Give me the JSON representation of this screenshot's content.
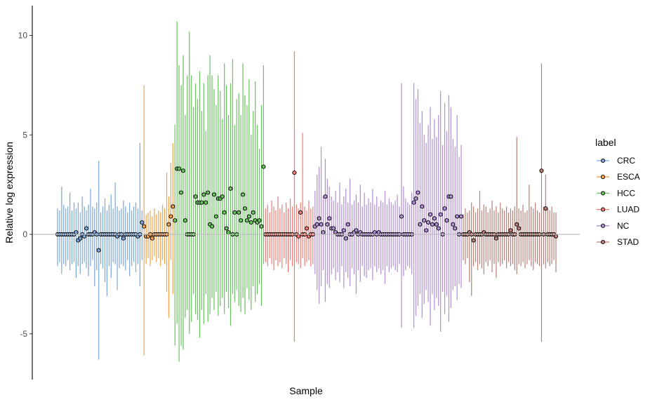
{
  "chart_data": {
    "type": "scatter",
    "subtype": "relative log expression boxplot (per-sample median points with whiskers)",
    "title": "",
    "xlabel": "Sample",
    "ylabel": "Relative log expression",
    "ylim": [
      -7.3,
      11.5
    ],
    "yticks": [
      -5,
      0,
      5,
      10
    ],
    "reference_line_y": 0,
    "grid": false,
    "legend": {
      "title": "label",
      "position": "right"
    },
    "groups": [
      {
        "name": "CRC",
        "color": "#7AA6D9",
        "n": 42,
        "median_values": [
          0,
          0,
          0,
          0,
          0,
          0,
          0,
          0,
          0,
          0.1,
          -0.3,
          -0.2,
          0,
          -0.1,
          0.3,
          0,
          0,
          0,
          0.1,
          0,
          -0.8,
          0,
          0,
          0,
          0,
          0,
          0,
          0,
          0,
          -0.1,
          0,
          0,
          -0.2,
          0,
          0,
          0,
          0,
          0,
          0,
          -0.1,
          0,
          0.6
        ],
        "whisker_high": [
          1.3,
          1.2,
          2.4,
          1.5,
          1.3,
          1.4,
          2.1,
          1.2,
          1.6,
          1.3,
          1.6,
          1.1,
          1.9,
          1.4,
          1.2,
          1.5,
          2.3,
          1.4,
          1.3,
          1.6,
          3.7,
          1.1,
          1.4,
          1.8,
          1.2,
          1.5,
          2.0,
          1.3,
          2.6,
          1.4,
          1.2,
          1.3,
          1.7,
          1.4,
          1.1,
          1.6,
          1.2,
          1.4,
          1.6,
          1.3,
          4.6,
          1.2
        ],
        "whisker_low": [
          -1.6,
          -1.4,
          -2.0,
          -1.5,
          -1.6,
          -1.3,
          -1.8,
          -1.5,
          -1.4,
          -2.2,
          -1.6,
          -2.0,
          -1.5,
          -1.4,
          -1.7,
          -2.1,
          -1.6,
          -1.3,
          -2.6,
          -1.8,
          -6.3,
          -1.5,
          -1.7,
          -2.4,
          -3.1,
          -1.6,
          -2.2,
          -1.4,
          -1.5,
          -2.8,
          -1.7,
          -1.5,
          -1.6,
          -1.8,
          -1.3,
          -2.1,
          -1.6,
          -1.4,
          -1.9,
          -1.5,
          -2.6,
          -1.3
        ]
      },
      {
        "name": "ESCA",
        "color": "#F6A24B",
        "n": 15,
        "median_values": [
          0.4,
          -0.1,
          -0.1,
          0,
          -0.2,
          0,
          0,
          0,
          0,
          0,
          0,
          0,
          0.5,
          0.9,
          1.4
        ],
        "whisker_high": [
          7.5,
          1.0,
          1.1,
          1.2,
          0.9,
          1.3,
          1.0,
          1.2,
          1.1,
          1.5,
          1.3,
          3.1,
          1.9,
          3.6,
          4.6
        ],
        "whisker_low": [
          -6.1,
          -1.5,
          -1.2,
          -1.6,
          -1.3,
          -1.1,
          -1.4,
          -1.2,
          -1.6,
          -1.3,
          -1.5,
          -2.9,
          -4.2,
          -1.3,
          -3.0
        ]
      },
      {
        "name": "HCC",
        "color": "#69C35F",
        "n": 44,
        "median_values": [
          0.7,
          3.3,
          3.3,
          2.1,
          3.2,
          0.7,
          0,
          0,
          0,
          0,
          1.9,
          1.6,
          1.6,
          1.6,
          2.0,
          1.6,
          2.1,
          0.5,
          0.4,
          2.0,
          0.9,
          1.8,
          1.8,
          1.9,
          1.1,
          0.3,
          0.1,
          2.3,
          0,
          1.1,
          0,
          1.1,
          0.7,
          2.0,
          1.3,
          0.7,
          0.9,
          0.6,
          1.1,
          0.7,
          0.6,
          0.7,
          0.4,
          3.4
        ],
        "whisker_high": [
          5.5,
          10.7,
          8.5,
          7.5,
          9.0,
          6.0,
          8.0,
          10.2,
          8.0,
          6.4,
          7.6,
          6.8,
          8.2,
          6.2,
          7.6,
          5.2,
          8.0,
          9.0,
          8.0,
          7.3,
          6.5,
          8.0,
          7.2,
          5.8,
          8.6,
          7.5,
          6.0,
          7.6,
          8.8,
          5.5,
          6.8,
          7.1,
          6.0,
          8.6,
          7.0,
          6.5,
          7.8,
          5.0,
          6.2,
          7.7,
          5.5,
          4.3,
          6.5,
          8.5
        ],
        "whisker_low": [
          -5.6,
          -4.5,
          -6.4,
          -5.6,
          -5.8,
          -4.2,
          -3.8,
          -5.0,
          -4.4,
          -3.0,
          -4.0,
          -4.3,
          -5.2,
          -3.8,
          -4.5,
          -3.0,
          -4.4,
          -4.0,
          -3.2,
          -3.8,
          -2.9,
          -4.1,
          -3.6,
          -3.2,
          -4.0,
          -2.9,
          -3.7,
          -4.6,
          -3.0,
          -3.4,
          -2.8,
          -3.6,
          -3.9,
          -3.2,
          -4.0,
          -2.7,
          -3.3,
          -3.8,
          -2.6,
          -3.4,
          -3.0,
          -2.5,
          -3.6,
          -1.5
        ]
      },
      {
        "name": "LUAD",
        "color": "#F07A72",
        "n": 24,
        "median_values": [
          0,
          0,
          0,
          0,
          0,
          0,
          0,
          0,
          0,
          0,
          0,
          0,
          0,
          0,
          3.1,
          0,
          -0.1,
          1.1,
          0,
          0,
          0.3,
          -0.1,
          0,
          0
        ],
        "whisker_high": [
          1.3,
          1.5,
          1.1,
          1.7,
          1.4,
          1.2,
          1.9,
          1.3,
          1.5,
          1.1,
          1.6,
          1.3,
          1.8,
          1.4,
          9.2,
          1.5,
          1.3,
          1.6,
          5.1,
          1.4,
          1.2,
          1.7,
          1.3,
          1.4
        ],
        "whisker_low": [
          -1.4,
          -1.6,
          -1.2,
          -1.5,
          -1.8,
          -1.3,
          -1.6,
          -1.4,
          -1.7,
          -1.2,
          -1.5,
          -1.9,
          -1.3,
          -1.6,
          -5.4,
          -1.4,
          -1.5,
          -1.7,
          -1.2,
          -1.6,
          -1.4,
          -1.3,
          -1.6,
          -1.5
        ]
      },
      {
        "name": "NC",
        "color": "#B18FD3",
        "n": 48,
        "median_values": [
          0.4,
          0.5,
          0.8,
          0.5,
          0.1,
          1.9,
          0.5,
          0.8,
          0.3,
          0.3,
          0.1,
          0,
          0,
          0,
          0.2,
          -0.2,
          0.5,
          0,
          0,
          0.1,
          0.2,
          0,
          0.1,
          0,
          0,
          0,
          0,
          0,
          0,
          0.1,
          0,
          0.1,
          0,
          0,
          0,
          0,
          0,
          0,
          0,
          0,
          0,
          0,
          0.9,
          0,
          0,
          0,
          0,
          0
        ],
        "whisker_high": [
          2.2,
          3.0,
          3.4,
          4.4,
          1.9,
          3.8,
          2.8,
          2.4,
          1.9,
          1.7,
          2.2,
          1.6,
          2.6,
          1.5,
          1.9,
          2.3,
          1.6,
          2.8,
          1.5,
          1.7,
          2.0,
          1.6,
          2.5,
          1.4,
          2.1,
          1.5,
          1.8,
          1.6,
          2.3,
          1.5,
          1.9,
          1.4,
          1.7,
          1.6,
          2.2,
          1.5,
          1.8,
          1.6,
          1.5,
          1.7,
          2.0,
          1.4,
          7.6,
          2.4,
          1.8,
          1.6,
          1.5,
          2.1
        ],
        "whisker_low": [
          -2.0,
          -2.8,
          -3.5,
          -2.6,
          -1.8,
          -3.4,
          -2.5,
          -2.7,
          -2.0,
          -1.7,
          -2.3,
          -1.9,
          -2.4,
          -1.6,
          -2.7,
          -1.9,
          -2.2,
          -2.6,
          -1.7,
          -2.0,
          -3.0,
          -1.8,
          -2.4,
          -1.6,
          -2.1,
          -2.2,
          -1.8,
          -1.7,
          -2.3,
          -1.6,
          -1.9,
          -1.7,
          -2.0,
          -1.8,
          -2.5,
          -1.6,
          -1.9,
          -1.7,
          -1.6,
          -1.8,
          -1.9,
          -1.5,
          -4.7,
          -2.1,
          -1.8,
          -1.6,
          -1.7,
          -2.0
        ]
      },
      {
        "name": "NC",
        "color": "#B18FD3",
        "n": 24,
        "median_values": [
          1.6,
          1.8,
          2.1,
          0.5,
          1.4,
          0.7,
          0.2,
          0.6,
          1.0,
          0.5,
          0.8,
          0.5,
          0.3,
          1.0,
          0,
          1.3,
          0.7,
          1.9,
          1.9,
          0.5,
          0.3,
          0.9,
          0,
          0.9
        ],
        "whisker_high": [
          7.6,
          6.8,
          7.3,
          5.6,
          6.2,
          5.0,
          4.6,
          5.5,
          6.4,
          4.8,
          5.8,
          4.9,
          6.0,
          7.2,
          4.5,
          6.6,
          5.2,
          7.0,
          6.4,
          4.8,
          4.4,
          6.0,
          3.9,
          4.5
        ],
        "whisker_low": [
          -4.7,
          -4.1,
          -3.6,
          -3.0,
          -4.2,
          -3.5,
          -2.8,
          -3.4,
          -4.6,
          -3.0,
          -3.8,
          -3.2,
          -3.6,
          -4.9,
          -2.9,
          -4.0,
          -3.1,
          -4.4,
          -3.7,
          -2.8,
          -2.6,
          -3.3,
          -2.5,
          -2.7
        ]
      },
      {
        "name": "STAD",
        "color": "#B87F76",
        "n": 46,
        "median_values": [
          0,
          0,
          0,
          0.1,
          0,
          -0.3,
          0,
          0,
          0,
          0,
          0.1,
          0,
          0,
          0,
          0,
          0,
          -0.2,
          0,
          0,
          0,
          0,
          0,
          0,
          0.2,
          0,
          0,
          0.5,
          0.3,
          0,
          0,
          0,
          0,
          0,
          0,
          0,
          0,
          0,
          0,
          3.2,
          0,
          1.3,
          0,
          0,
          0,
          0,
          -0.1
        ],
        "whisker_high": [
          1.0,
          1.3,
          1.1,
          1.2,
          1.6,
          1.4,
          1.1,
          1.3,
          2.2,
          1.2,
          1.5,
          1.4,
          1.1,
          1.3,
          1.7,
          1.2,
          1.4,
          1.1,
          1.6,
          1.3,
          1.2,
          1.4,
          1.1,
          1.3,
          1.2,
          1.4,
          4.9,
          1.3,
          1.2,
          1.5,
          1.1,
          1.2,
          2.5,
          1.4,
          1.3,
          1.6,
          1.2,
          1.1,
          8.6,
          1.4,
          3.0,
          1.3,
          1.2,
          1.4,
          1.1,
          1.1
        ],
        "whisker_low": [
          -1.3,
          -1.5,
          -1.2,
          -2.4,
          -3.1,
          -1.6,
          -1.4,
          -1.8,
          -1.5,
          -1.7,
          -2.0,
          -1.4,
          -1.6,
          -1.3,
          -1.9,
          -1.5,
          -2.2,
          -1.4,
          -1.6,
          -1.5,
          -1.3,
          -1.7,
          -1.4,
          -1.6,
          -1.5,
          -1.8,
          -2.0,
          -1.5,
          -1.6,
          -1.4,
          -1.7,
          -1.5,
          -1.3,
          -1.6,
          -1.8,
          -1.4,
          -1.5,
          -1.6,
          -5.4,
          -1.5,
          -1.7,
          -1.4,
          -1.6,
          -1.5,
          -1.3,
          -1.9
        ]
      }
    ],
    "legend_entries": [
      {
        "name": "CRC",
        "color": "#7AA6D9"
      },
      {
        "name": "ESCA",
        "color": "#F6A24B"
      },
      {
        "name": "HCC",
        "color": "#69C35F"
      },
      {
        "name": "LUAD",
        "color": "#F07A72"
      },
      {
        "name": "NC",
        "color": "#B18FD3"
      },
      {
        "name": "STAD",
        "color": "#B87F76"
      }
    ]
  }
}
